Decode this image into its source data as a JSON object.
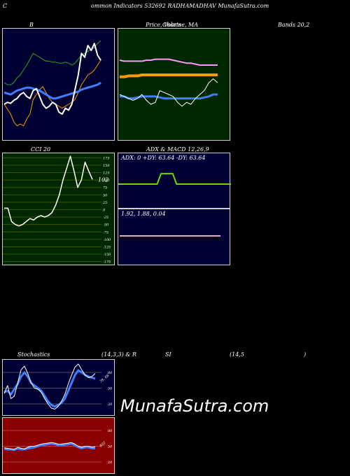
{
  "header": {
    "c": "C",
    "text": "ommon  Indicators 532692  RADHAMADHAV MunafaSutra.com"
  },
  "titles": {
    "bbands": "B",
    "price": "Price,  Volume,  MA",
    "price_overlay": "Charts",
    "bands": "Bands 20,2",
    "cci": "CCI 20",
    "adx": "ADX  &  MACD 12,26,9",
    "stoch_a": "Stochastics",
    "stoch_b": "(14,3,3) & R",
    "stoch_c": "SI",
    "stoch_d": "(14,5",
    "stoch_e": ")"
  },
  "watermark": "MunafaSutra.com",
  "colors": {
    "navy": "#000033",
    "dark_green": "#002800",
    "olive": "#3a5500",
    "dark_red": "#8b0000",
    "white": "#ffffff",
    "blue": "#3f7fff",
    "green": "#22aa22",
    "orange": "#ff9900",
    "pink": "#ff99ff",
    "bright_green": "#66dd00"
  },
  "chart_data": [
    {
      "type": "line",
      "title": "B",
      "series": [
        {
          "values": [
            52,
            50,
            50,
            52,
            57,
            60,
            65,
            70,
            76,
            82,
            80,
            78,
            76,
            74,
            74,
            73,
            73,
            72,
            72,
            73,
            72,
            70,
            72,
            76,
            80,
            82,
            84,
            86,
            88,
            92,
            95
          ]
        },
        {
          "values": [
            30,
            25,
            20,
            12,
            8,
            10,
            8,
            15,
            20,
            35,
            40,
            45,
            48,
            42,
            36,
            32,
            30,
            28,
            26,
            28,
            30,
            32,
            35,
            42,
            50,
            55,
            60,
            62,
            65,
            70,
            75
          ]
        },
        {
          "values": [
            42,
            41,
            40,
            42,
            44,
            45,
            46,
            47,
            47,
            46,
            45,
            44,
            42,
            40,
            38,
            36,
            36,
            37,
            38,
            39,
            40,
            41,
            42,
            43,
            45,
            46,
            47,
            48,
            49,
            50,
            52
          ]
        },
        {
          "values": [
            30,
            32,
            31,
            34,
            36,
            40,
            42,
            38,
            36,
            44,
            46,
            38,
            30,
            26,
            28,
            32,
            30,
            22,
            20,
            26,
            24,
            30,
            45,
            60,
            82,
            78,
            90,
            85,
            92,
            80,
            75
          ]
        }
      ]
    },
    {
      "type": "line",
      "title": "Price, Volume, MA",
      "series": [
        {
          "values": [
            75,
            74,
            74,
            74,
            74,
            74,
            75,
            75,
            76,
            76,
            76,
            76,
            75,
            74,
            73,
            72,
            72,
            71,
            70,
            70,
            70,
            70,
            70
          ]
        },
        {
          "values": [
            58,
            58,
            59,
            59,
            59,
            60,
            60,
            60,
            60,
            60,
            60,
            60,
            60,
            60,
            60,
            60,
            60,
            60,
            60,
            60,
            60,
            60,
            60
          ]
        },
        {
          "values": [
            38,
            38,
            36,
            36,
            37,
            38,
            38,
            38,
            38,
            37,
            36,
            36,
            36,
            36,
            36,
            36,
            36,
            36,
            36,
            37,
            38,
            40,
            40
          ]
        },
        {
          "values": [
            40,
            38,
            36,
            34,
            36,
            40,
            34,
            30,
            32,
            44,
            42,
            40,
            38,
            32,
            28,
            32,
            30,
            36,
            40,
            44,
            52,
            56,
            52
          ]
        }
      ]
    },
    {
      "type": "line",
      "title": "CCI 20",
      "yticks": [
        175,
        150,
        125,
        100,
        75,
        50,
        25,
        0,
        -25,
        -50,
        -75,
        -100,
        -125,
        -150,
        -175
      ],
      "ylim": [
        -190,
        190
      ],
      "last_label": "102",
      "values": [
        5,
        5,
        -40,
        -50,
        -55,
        -50,
        -40,
        -30,
        -35,
        -25,
        -20,
        -25,
        -20,
        -10,
        15,
        50,
        100,
        140,
        180,
        130,
        75,
        100,
        160,
        130,
        102
      ]
    },
    {
      "type": "line",
      "title": "ADX & MACD 12,26,9",
      "adx_label": "ADX: 0   +DY: 63.64   -DY: 63.64",
      "macd_label": "1.92,   1.88,   0.04",
      "adx_series": [
        45,
        45,
        45,
        45,
        45,
        45,
        45,
        45,
        45,
        45,
        45,
        63.64,
        63.64,
        63.64,
        63.64,
        45,
        45,
        45,
        45,
        45,
        45,
        45,
        45,
        45,
        45,
        45,
        45,
        45,
        45,
        45
      ],
      "macd": [
        1.92,
        1.92,
        1.92,
        1.92,
        1.92,
        1.92,
        1.92,
        1.92,
        1.92,
        1.92,
        1.92,
        1.92,
        1.92,
        1.92,
        1.92,
        1.92,
        1.92,
        1.92,
        1.92,
        1.92
      ],
      "signal": [
        1.88,
        1.88,
        1.88,
        1.88,
        1.88,
        1.88,
        1.88,
        1.88,
        1.88,
        1.88,
        1.88,
        1.88,
        1.88,
        1.88,
        1.88,
        1.88,
        1.88,
        1.88,
        1.88,
        1.88
      ]
    },
    {
      "type": "line",
      "title": "Stochastics (14,3,3)",
      "yticks": [
        80,
        50,
        20
      ],
      "ylim": [
        0,
        100
      ],
      "k_label": "78, 68",
      "series": [
        {
          "values": [
            42,
            45,
            38,
            48,
            58,
            72,
            80,
            72,
            60,
            55,
            50,
            45,
            35,
            25,
            18,
            15,
            18,
            22,
            30,
            45,
            60,
            75,
            84,
            80,
            75,
            72,
            70,
            68
          ]
        },
        {
          "values": [
            40,
            55,
            30,
            35,
            60,
            85,
            92,
            78,
            60,
            50,
            48,
            42,
            30,
            20,
            12,
            10,
            15,
            25,
            38,
            58,
            75,
            90,
            96,
            85,
            75,
            70,
            72,
            78
          ]
        }
      ]
    },
    {
      "type": "line",
      "title": "RSI (14,5)",
      "yticks": [
        80,
        50,
        20
      ],
      "ylim": [
        0,
        100
      ],
      "r_label": "RSI",
      "series": [
        {
          "values": [
            45,
            44,
            44,
            43,
            46,
            44,
            44,
            46,
            47,
            48,
            50,
            52,
            53,
            54,
            55,
            54,
            52,
            52,
            53,
            54,
            55,
            52,
            48,
            46,
            48,
            48,
            46,
            46
          ]
        },
        {
          "values": [
            47,
            46,
            45,
            44,
            48,
            46,
            45,
            48,
            50,
            50,
            52,
            54,
            55,
            56,
            57,
            56,
            54,
            54,
            55,
            56,
            57,
            54,
            50,
            48,
            50,
            50,
            48,
            49
          ]
        }
      ]
    }
  ]
}
